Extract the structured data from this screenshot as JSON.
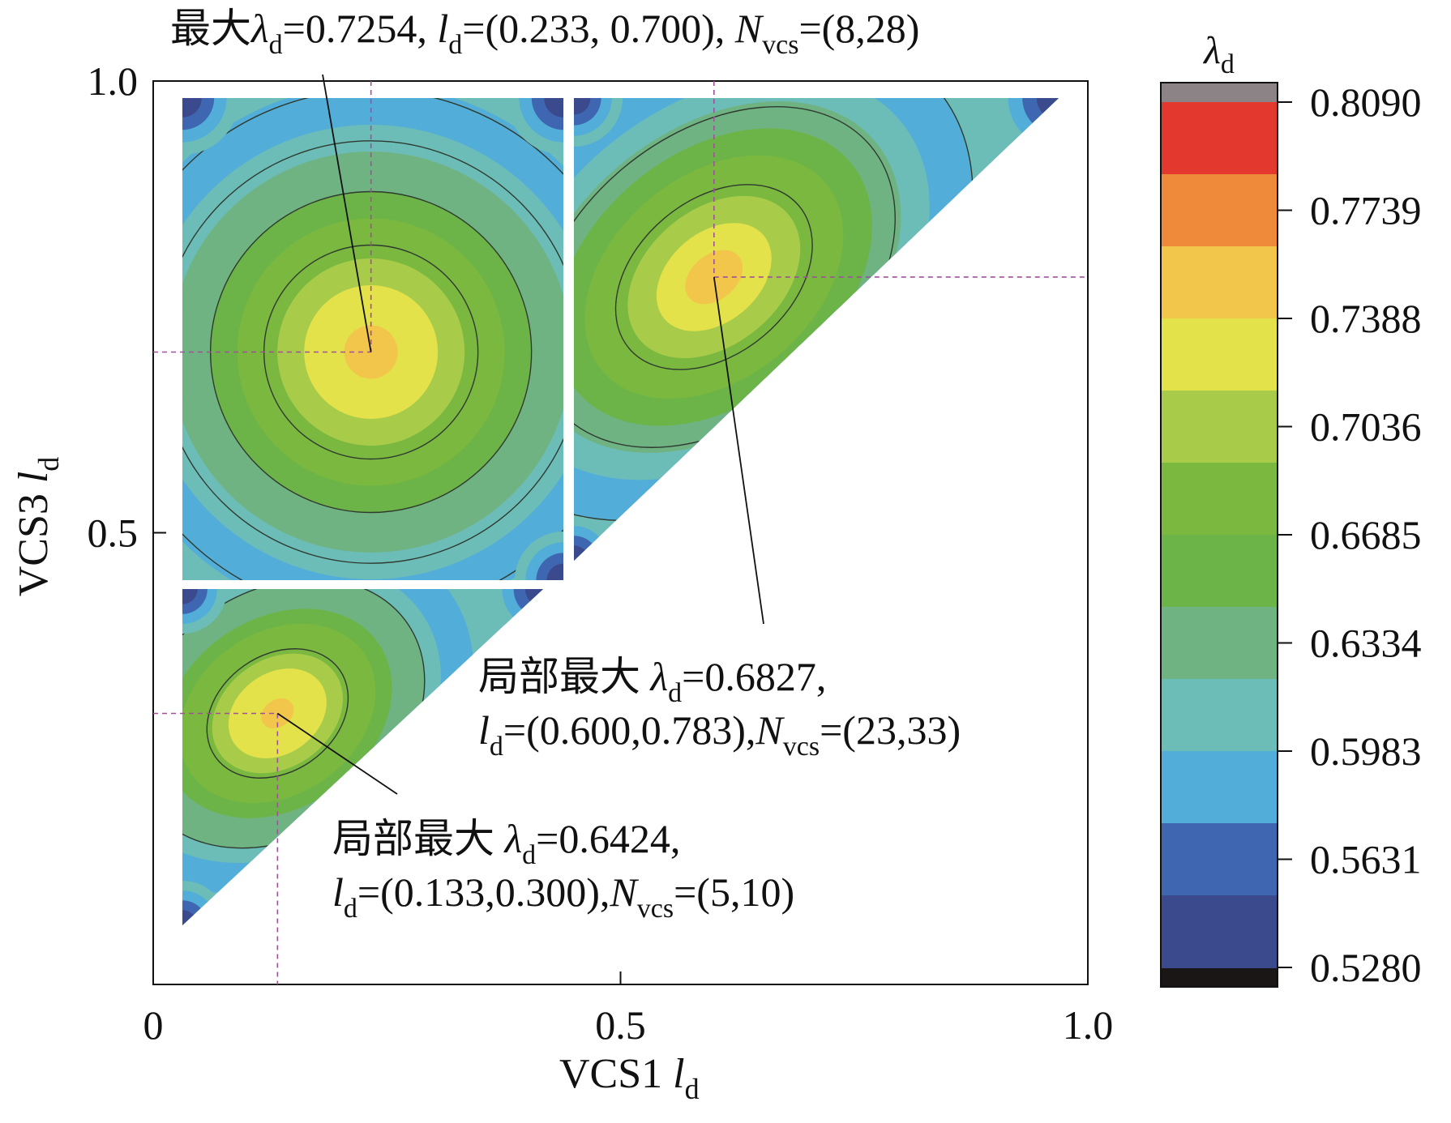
{
  "chart_data": {
    "type": "heatmap",
    "title": "",
    "xlabel": {
      "main": "VCS1 ",
      "var": "l",
      "sub": "d"
    },
    "ylabel": {
      "main": "VCS3 ",
      "var": "l",
      "sub": "d"
    },
    "xlim": [
      0,
      1.0
    ],
    "ylim": [
      0,
      1.0
    ],
    "xticks": [
      {
        "value": 0,
        "label": "0"
      },
      {
        "value": 0.5,
        "label": "0.5"
      },
      {
        "value": 1.0,
        "label": "1.0"
      }
    ],
    "yticks": [
      {
        "value": 0.5,
        "label": "0.5"
      },
      {
        "value": 1.0,
        "label": "1.0"
      }
    ],
    "colorbar": {
      "title": {
        "var": "λ",
        "sub": "d"
      },
      "min": 0.528,
      "max": 0.809,
      "ticks": [
        "0.8090",
        "0.7739",
        "0.7388",
        "0.7036",
        "0.6685",
        "0.6334",
        "0.5983",
        "0.5631",
        "0.5280"
      ],
      "colors": [
        "#3b4a8c",
        "#3f66b0",
        "#52aed8",
        "#6cbdb8",
        "#70b383",
        "#6cb447",
        "#7ab83f",
        "#a9cb4a",
        "#e4e24b",
        "#f2c64a",
        "#ef8a3b",
        "#e2382e"
      ],
      "over_color": "#8b8386",
      "under_color": "#1a1616"
    },
    "field": {
      "description_points": [
        {
          "region": "upper-left",
          "peak": [
            0.233,
            0.7
          ],
          "value": 0.7254
        },
        {
          "region": "upper-right",
          "peak": [
            0.6,
            0.783
          ],
          "value": 0.6827
        },
        {
          "region": "lower",
          "peak": [
            0.133,
            0.3
          ],
          "value": 0.6424
        }
      ]
    },
    "annotations": [
      {
        "id": "global-max",
        "point": [
          0.233,
          0.7
        ],
        "lines": [
          [
            {
              "t": "最大",
              "style": "normal"
            },
            {
              "t": "λ",
              "style": "italic"
            },
            {
              "t": "d",
              "style": "sub"
            },
            {
              "t": "=0.7254, ",
              "style": "normal"
            },
            {
              "t": "l",
              "style": "italic"
            },
            {
              "t": "d",
              "style": "sub"
            },
            {
              "t": "=(0.233, 0.700), ",
              "style": "normal"
            },
            {
              "t": "N",
              "style": "italic"
            },
            {
              "t": "vcs",
              "style": "sub"
            },
            {
              "t": "=(8,28)",
              "style": "normal"
            }
          ]
        ]
      },
      {
        "id": "local-max-1",
        "point": [
          0.6,
          0.783
        ],
        "lines": [
          [
            {
              "t": "局部最大 ",
              "style": "normal"
            },
            {
              "t": "λ",
              "style": "italic"
            },
            {
              "t": "d",
              "style": "sub"
            },
            {
              "t": "=0.6827,",
              "style": "normal"
            }
          ],
          [
            {
              "t": "l",
              "style": "italic"
            },
            {
              "t": "d",
              "style": "sub"
            },
            {
              "t": "=(0.600,0.783),",
              "style": "normal"
            },
            {
              "t": "N",
              "style": "italic"
            },
            {
              "t": "vcs",
              "style": "sub"
            },
            {
              "t": "=(23,33)",
              "style": "normal"
            }
          ]
        ]
      },
      {
        "id": "local-max-2",
        "point": [
          0.133,
          0.3
        ],
        "lines": [
          [
            {
              "t": "局部最大 ",
              "style": "normal"
            },
            {
              "t": "λ",
              "style": "italic"
            },
            {
              "t": "d",
              "style": "sub"
            },
            {
              "t": "=0.6424,",
              "style": "normal"
            }
          ],
          [
            {
              "t": "l",
              "style": "italic"
            },
            {
              "t": "d",
              "style": "sub"
            },
            {
              "t": "=(0.133,0.300),",
              "style": "normal"
            },
            {
              "t": "N",
              "style": "italic"
            },
            {
              "t": "vcs",
              "style": "sub"
            },
            {
              "t": "=(5,10)",
              "style": "normal"
            }
          ]
        ]
      }
    ],
    "guide_line_color": "#a0509a",
    "contour_color": "#2f3a2f"
  }
}
